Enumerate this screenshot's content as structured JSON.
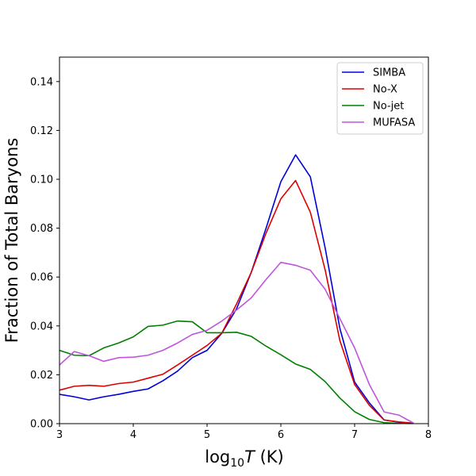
{
  "chart_data": {
    "type": "line",
    "title": "",
    "xlabel_prefix": "log",
    "xlabel_sub": "10",
    "xlabel_var": "T",
    "xlabel_unit": " (K)",
    "ylabel": "Fraction of Total Baryons",
    "xlim": [
      3,
      8
    ],
    "ylim": [
      0,
      0.15
    ],
    "xticks": [
      3,
      4,
      5,
      6,
      7,
      8
    ],
    "yticks": [
      0.0,
      0.02,
      0.04,
      0.06,
      0.08,
      0.1,
      0.12,
      0.14
    ],
    "ytick_labels": [
      "0.00",
      "0.02",
      "0.04",
      "0.06",
      "0.08",
      "0.10",
      "0.12",
      "0.14"
    ],
    "legend_position": "top-right",
    "x": [
      3.0,
      3.2,
      3.4,
      3.6,
      3.8,
      4.0,
      4.2,
      4.4,
      4.6,
      4.8,
      5.0,
      5.2,
      5.4,
      5.6,
      5.8,
      6.0,
      6.2,
      6.4,
      6.6,
      6.8,
      7.0,
      7.2,
      7.4,
      7.6,
      7.8
    ],
    "series": [
      {
        "name": "SIMBA",
        "color": "#0000dd",
        "values": [
          0.012,
          0.011,
          0.0097,
          0.011,
          0.012,
          0.0132,
          0.0142,
          0.0175,
          0.0215,
          0.027,
          0.03,
          0.037,
          0.047,
          0.062,
          0.08,
          0.099,
          0.11,
          0.101,
          0.072,
          0.039,
          0.017,
          0.0085,
          0.0015,
          0.0006,
          0.0002
        ]
      },
      {
        "name": "No-X",
        "color": "#dd0000",
        "values": [
          0.0137,
          0.0153,
          0.0157,
          0.0153,
          0.0164,
          0.017,
          0.0186,
          0.0202,
          0.024,
          0.028,
          0.032,
          0.037,
          0.049,
          0.062,
          0.078,
          0.092,
          0.0995,
          0.0865,
          0.063,
          0.034,
          0.016,
          0.0075,
          0.0015,
          0.0007,
          0.0002
        ]
      },
      {
        "name": "No-jet",
        "color": "#008000",
        "values": [
          0.03,
          0.028,
          0.0278,
          0.031,
          0.033,
          0.0355,
          0.0398,
          0.0403,
          0.042,
          0.0417,
          0.0372,
          0.0372,
          0.0374,
          0.0357,
          0.0317,
          0.0282,
          0.0244,
          0.0222,
          0.0172,
          0.0105,
          0.0049,
          0.0017,
          0.0004,
          0.0001,
          5e-05
        ]
      },
      {
        "name": "MUFASA",
        "color": "#bf55dd",
        "values": [
          0.024,
          0.0295,
          0.0278,
          0.0255,
          0.027,
          0.0272,
          0.028,
          0.03,
          0.033,
          0.0365,
          0.0382,
          0.042,
          0.0465,
          0.0515,
          0.059,
          0.066,
          0.0648,
          0.0628,
          0.055,
          0.043,
          0.031,
          0.016,
          0.0048,
          0.0035,
          0.0002
        ]
      }
    ]
  }
}
